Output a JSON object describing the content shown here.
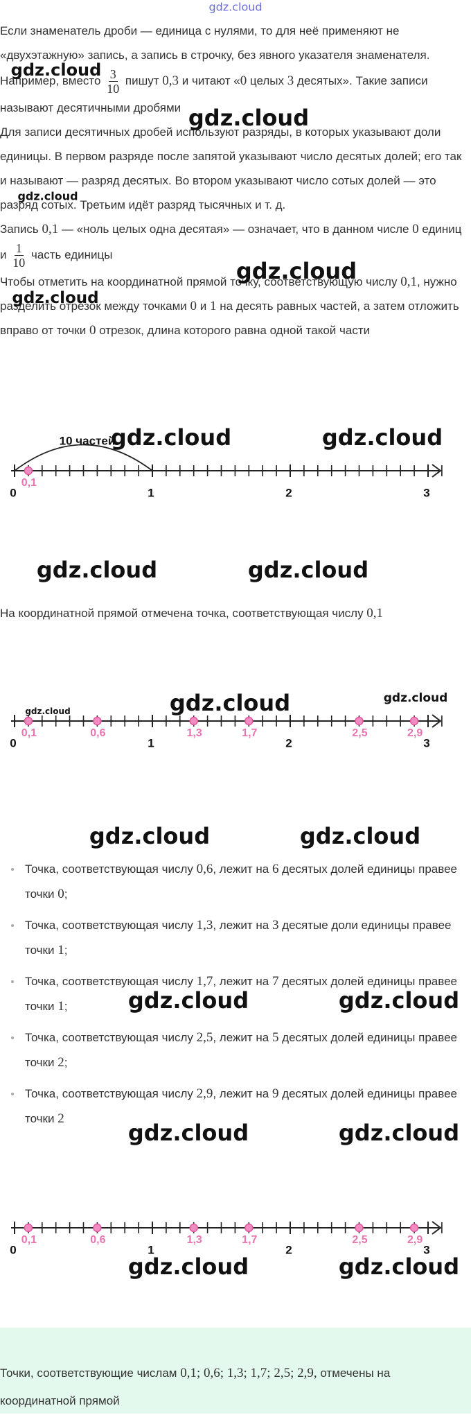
{
  "watermark": "gdz.cloud",
  "paragraphs": [
    [
      "Если знаменатель дроби — единица с нулями, то для неё применяют не «двухэтажную» запись, а запись в строчку, без явного указателя знаменателя. Например, вместо ",
      {
        "frac": [
          "3",
          "10"
        ]
      },
      " пишут ",
      {
        "math": "0,3"
      },
      " и читают «",
      {
        "math": "0"
      },
      " целых ",
      {
        "math": "3"
      },
      " десятых». Такие записи называют десятичными дробями"
    ],
    [
      "Для записи десятичных дробей используют разряды, в которых указывают доли единицы. В первом разряде после запятой указывают число десятых долей; его так и называют — разряд десятых. Во втором указывают число сотых долей — это разряд сотых. Третьим идёт разряд тысячных и т. д."
    ],
    [
      "Запись ",
      {
        "math": "0,1"
      },
      " — «ноль целых одна десятая» — означает, что в данном числе ",
      {
        "math": "0"
      },
      " единиц и ",
      {
        "frac": [
          "1",
          "10"
        ]
      },
      " часть единицы"
    ],
    [
      "Чтобы отметить на координатной прямой точку, соответствующую числу ",
      {
        "math": "0,1"
      },
      ", нужно разделить отрезок между точками ",
      {
        "math": "0"
      },
      " и ",
      {
        "math": "1"
      },
      " на десять равных частей, а затем отложить вправо от точки ",
      {
        "math": "0"
      },
      " отрезок, длина которого равна одной такой части"
    ]
  ],
  "number_lines": [
    {
      "ticks": [
        0,
        1,
        2,
        3
      ],
      "arc_label": "10 частей",
      "points": [
        {
          "value": 0.1,
          "label": "0,1"
        }
      ]
    },
    {
      "ticks": [
        0,
        1,
        2,
        3
      ],
      "points": [
        {
          "value": 0.1,
          "label": "0,1"
        },
        {
          "value": 0.6,
          "label": "0,6"
        },
        {
          "value": 1.3,
          "label": "1,3"
        },
        {
          "value": 1.7,
          "label": "1,7"
        },
        {
          "value": 2.5,
          "label": "2,5"
        },
        {
          "value": 2.9,
          "label": "2,9"
        }
      ]
    },
    {
      "ticks": [
        0,
        1,
        2,
        3
      ],
      "points": [
        {
          "value": 0.1,
          "label": "0,1"
        },
        {
          "value": 0.6,
          "label": "0,6"
        },
        {
          "value": 1.3,
          "label": "1,3"
        },
        {
          "value": 1.7,
          "label": "1,7"
        },
        {
          "value": 2.5,
          "label": "2,5"
        },
        {
          "value": 2.9,
          "label": "2,9"
        }
      ]
    }
  ],
  "caption": [
    "На координатной прямой отмечена точка, соответствующая числу ",
    {
      "math": "0,1"
    }
  ],
  "bullets": [
    [
      "Точка, соответствующая числу ",
      {
        "math": "0,6"
      },
      ", лежит на ",
      {
        "math": "6"
      },
      " десятых долей единицы правее точки ",
      {
        "math": "0"
      },
      ";"
    ],
    [
      "Точка, соответствующая числу ",
      {
        "math": "1,3"
      },
      ", лежит на ",
      {
        "math": "3"
      },
      " десятые доли единицы правее точки ",
      {
        "math": "1"
      },
      ";"
    ],
    [
      "Точка, соответствующая числу ",
      {
        "math": "1,7"
      },
      ", лежит на ",
      {
        "math": "7"
      },
      " десятых долей единицы правее точки ",
      {
        "math": "1"
      },
      ";"
    ],
    [
      "Точка, соответствующая числу ",
      {
        "math": "2,5"
      },
      ", лежит на ",
      {
        "math": "5"
      },
      " десятых долей единицы правее точки ",
      {
        "math": "2"
      },
      ";"
    ],
    [
      "Точка, соответствующая числу ",
      {
        "math": "2,9"
      },
      ", лежит на ",
      {
        "math": "9"
      },
      " десятых долей единицы правее точки ",
      {
        "math": "2"
      }
    ]
  ],
  "conclusion": [
    "Точки, соответствующие числам ",
    {
      "math": "0,1;  0,6;  1,3;  1,7;  2,5;  2,9,"
    },
    " отмечены на координатной прямой"
  ]
}
